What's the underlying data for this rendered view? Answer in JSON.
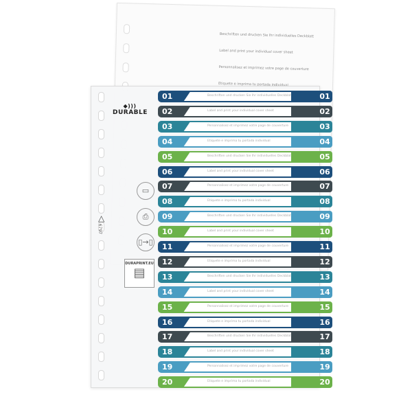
{
  "brand": "DURABLE",
  "product_code": "6797",
  "website": "DURAPRINT.EU",
  "cover_sheet_text": [
    "Beschriften und drucken Sie Ihr individuelles Deckblatt",
    "Label and print your individual cover sheet",
    "Personnalisez et imprimez votre page de couverture",
    "Etiquete e imprima tu portada individual"
  ],
  "icons": [
    "monitor-icon",
    "printer-icon",
    "insert-sheet-icon",
    "recycle-icon"
  ],
  "tab_colors": [
    "#1d4f7c",
    "#3e4a50",
    "#2b8498",
    "#4a9dc2",
    "#6cb24a"
  ],
  "tabs": [
    "01",
    "02",
    "03",
    "04",
    "05",
    "06",
    "07",
    "08",
    "09",
    "10",
    "11",
    "12",
    "13",
    "14",
    "15",
    "16",
    "17",
    "18",
    "19",
    "20"
  ]
}
